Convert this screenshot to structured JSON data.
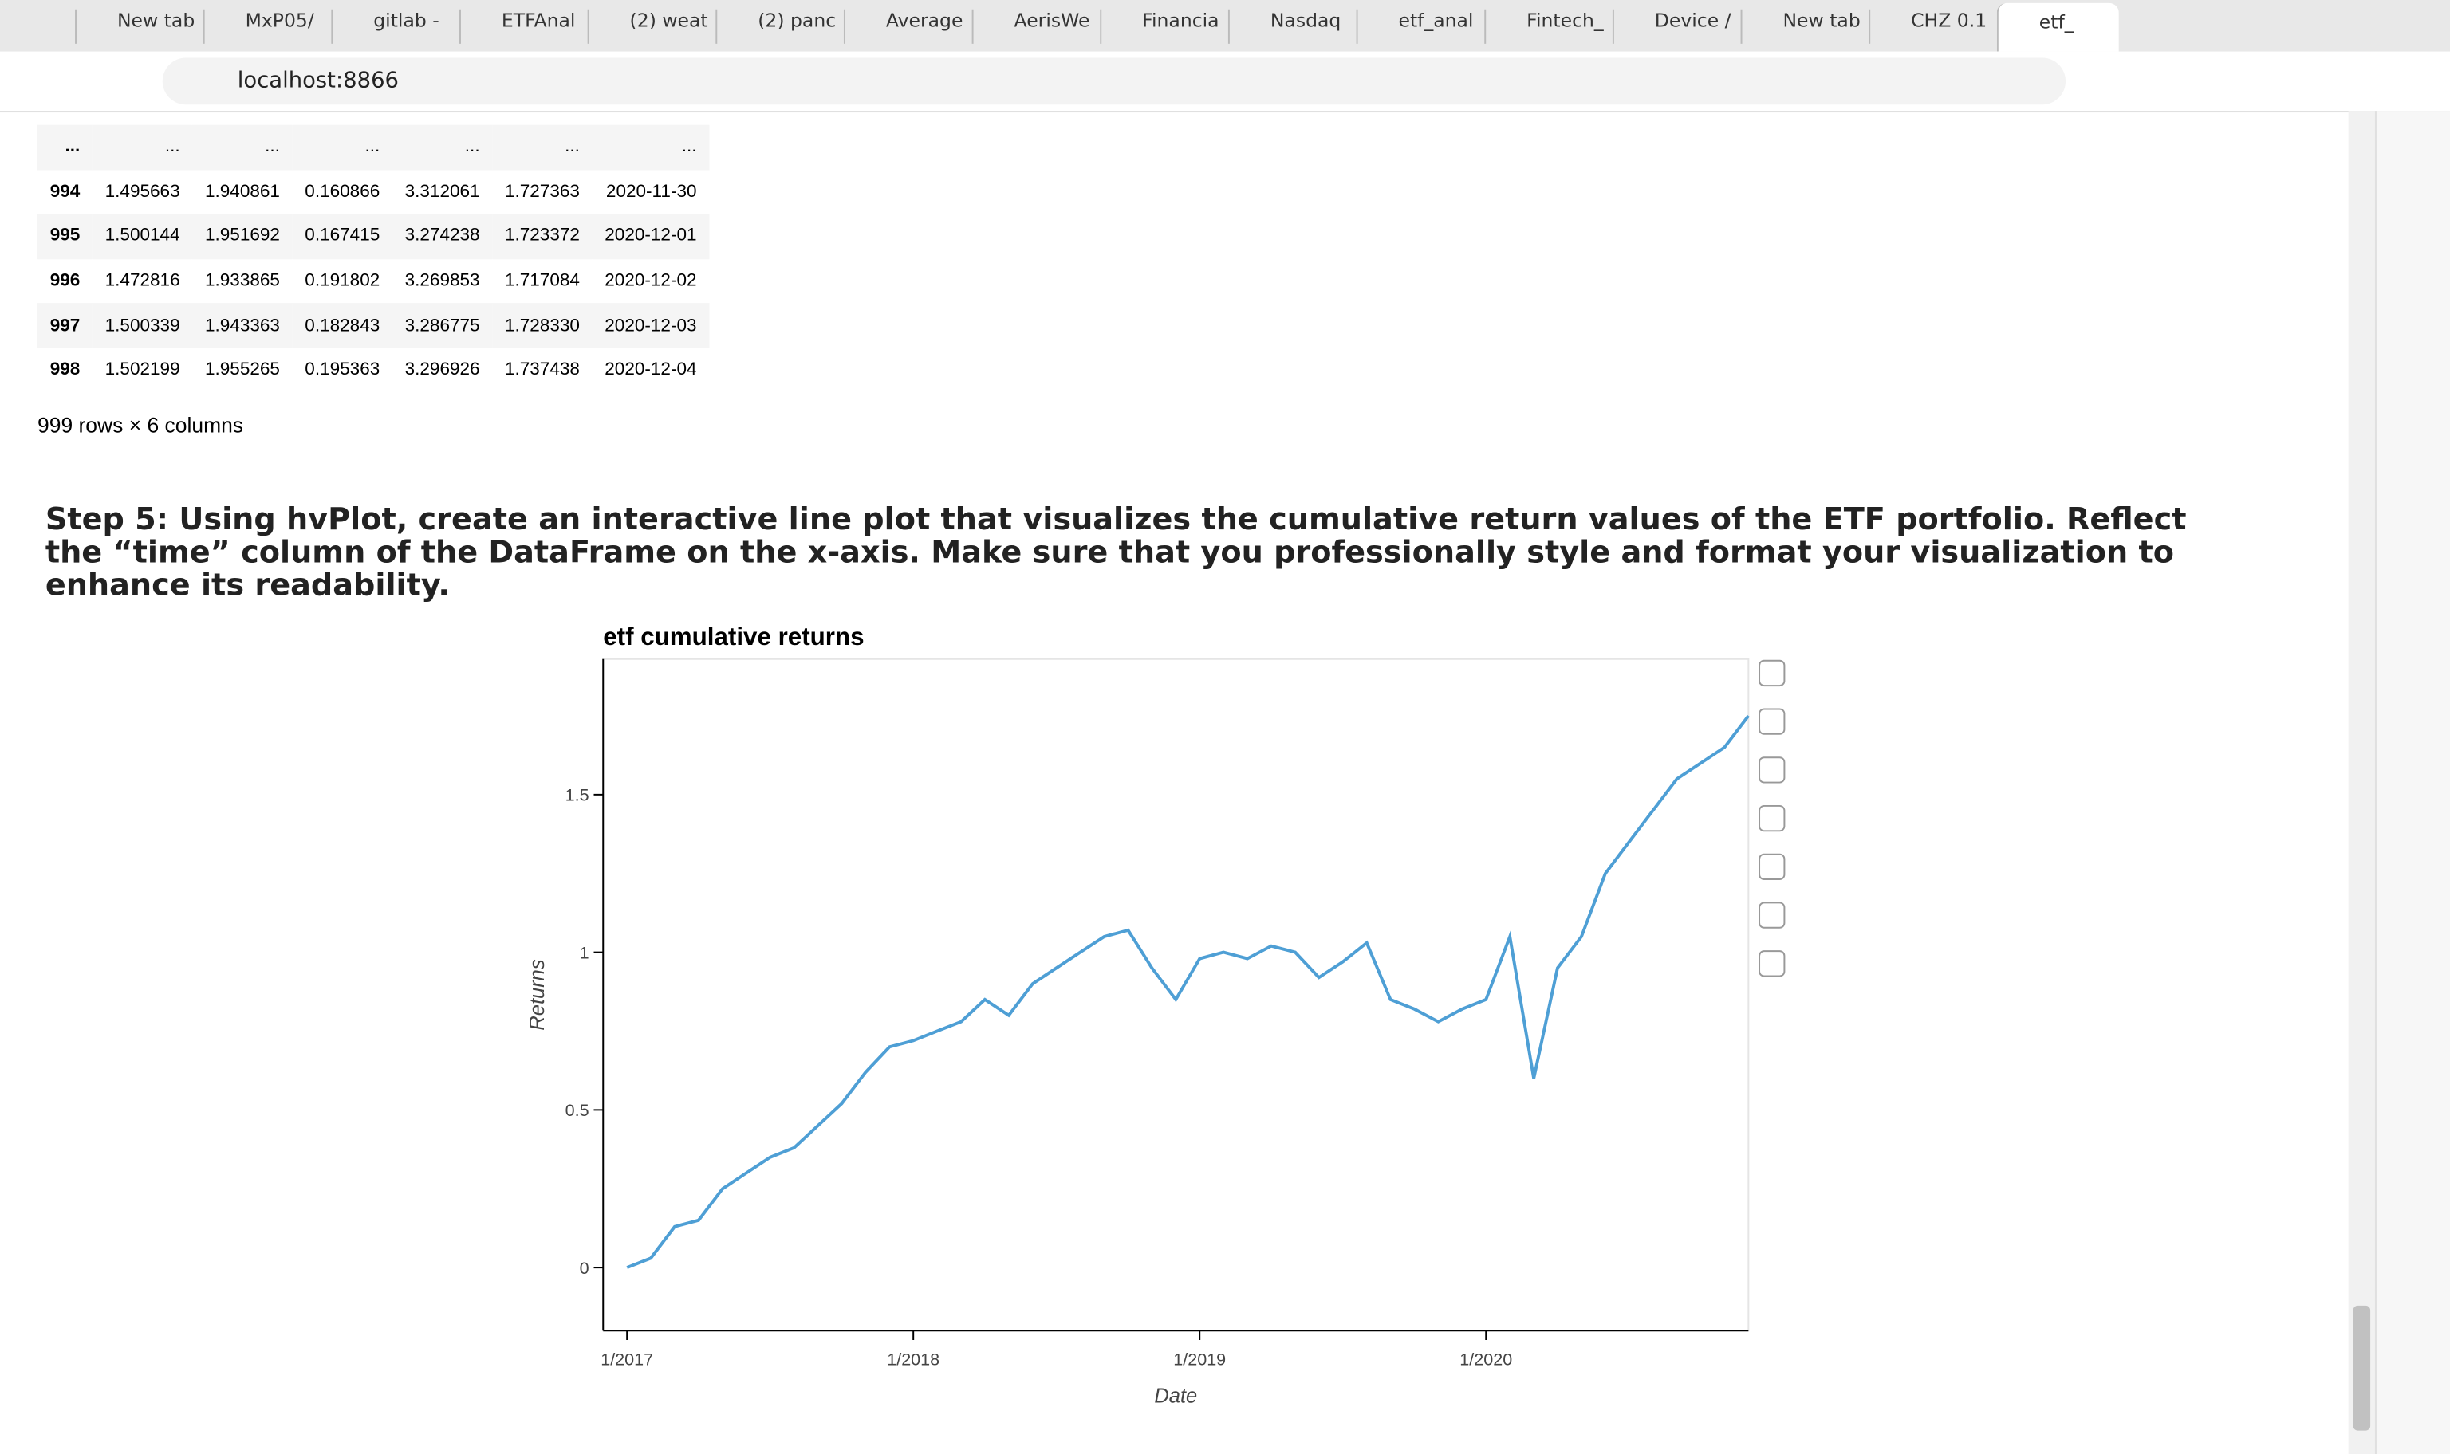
{
  "browser": {
    "tabs": [
      "New tab",
      "MxP05/",
      "gitlab -",
      "ETFAnal",
      "(2) weat",
      "(2) panc",
      "Average",
      "AerisWe",
      "Financia",
      "Nasdaq",
      "etf_anal",
      "Fintech_",
      "Device /",
      "New tab",
      "CHZ 0.1",
      "etf_"
    ],
    "address": "localhost:8866"
  },
  "table": {
    "ellipsis": "...",
    "rows": [
      [
        "994",
        "1.495663",
        "1.940861",
        "0.160866",
        "3.312061",
        "1.727363",
        "2020-11-30"
      ],
      [
        "995",
        "1.500144",
        "1.951692",
        "0.167415",
        "3.274238",
        "1.723372",
        "2020-12-01"
      ],
      [
        "996",
        "1.472816",
        "1.933865",
        "0.191802",
        "3.269853",
        "1.717084",
        "2020-12-02"
      ],
      [
        "997",
        "1.500339",
        "1.943363",
        "0.182843",
        "3.286775",
        "1.728330",
        "2020-12-03"
      ],
      [
        "998",
        "1.502199",
        "1.955265",
        "0.195363",
        "3.296926",
        "1.737438",
        "2020-12-04"
      ]
    ],
    "shape": "999 rows × 6 columns"
  },
  "step": "Step 5: Using hvPlot, create an interactive line plot that visualizes the cumulative return values of the ETF portfolio. Reflect the “time” column of the DataFrame on the x-axis. Make sure that you professionally style and format your visualization to enhance its readability.",
  "chart_data": {
    "type": "line",
    "title": "etf cumulative returns",
    "x_label": "Date",
    "y_label": "Returns",
    "series": [
      {
        "name": "etf cumulative returns",
        "color": "#4e9fd5",
        "x": [
          "1/2017",
          "2/2017",
          "3/2017",
          "4/2017",
          "5/2017",
          "6/2017",
          "7/2017",
          "8/2017",
          "9/2017",
          "10/2017",
          "11/2017",
          "12/2017",
          "1/2018",
          "2/2018",
          "3/2018",
          "4/2018",
          "5/2018",
          "6/2018",
          "7/2018",
          "8/2018",
          "9/2018",
          "10/2018",
          "11/2018",
          "12/2018",
          "1/2019",
          "2/2019",
          "3/2019",
          "4/2019",
          "5/2019",
          "6/2019",
          "7/2019",
          "8/2019",
          "9/2019",
          "10/2019",
          "11/2019",
          "12/2019",
          "1/2020",
          "2/2020",
          "3/2020",
          "4/2020",
          "5/2020",
          "6/2020",
          "7/2020",
          "8/2020",
          "9/2020",
          "10/2020",
          "11/2020",
          "12/2020"
        ],
        "values": [
          0,
          0.03,
          0.13,
          0.15,
          0.25,
          0.3,
          0.35,
          0.38,
          0.45,
          0.52,
          0.62,
          0.7,
          0.72,
          0.75,
          0.78,
          0.85,
          0.8,
          0.9,
          0.95,
          1.0,
          1.05,
          1.07,
          0.95,
          0.85,
          0.98,
          1.0,
          0.98,
          1.02,
          1.0,
          0.92,
          0.97,
          1.03,
          0.85,
          0.82,
          0.78,
          0.82,
          0.85,
          1.05,
          0.6,
          0.95,
          1.05,
          1.25,
          1.35,
          1.45,
          1.55,
          1.6,
          1.65,
          1.75
        ]
      }
    ],
    "xlim": [
      "12/2016",
      "12/2020"
    ],
    "xticks": [
      "1/2017",
      "1/2018",
      "1/2019",
      "1/2020"
    ],
    "ylim": [
      -0.2,
      1.93
    ],
    "yticks": [
      0,
      0.5,
      1,
      1.5
    ]
  }
}
